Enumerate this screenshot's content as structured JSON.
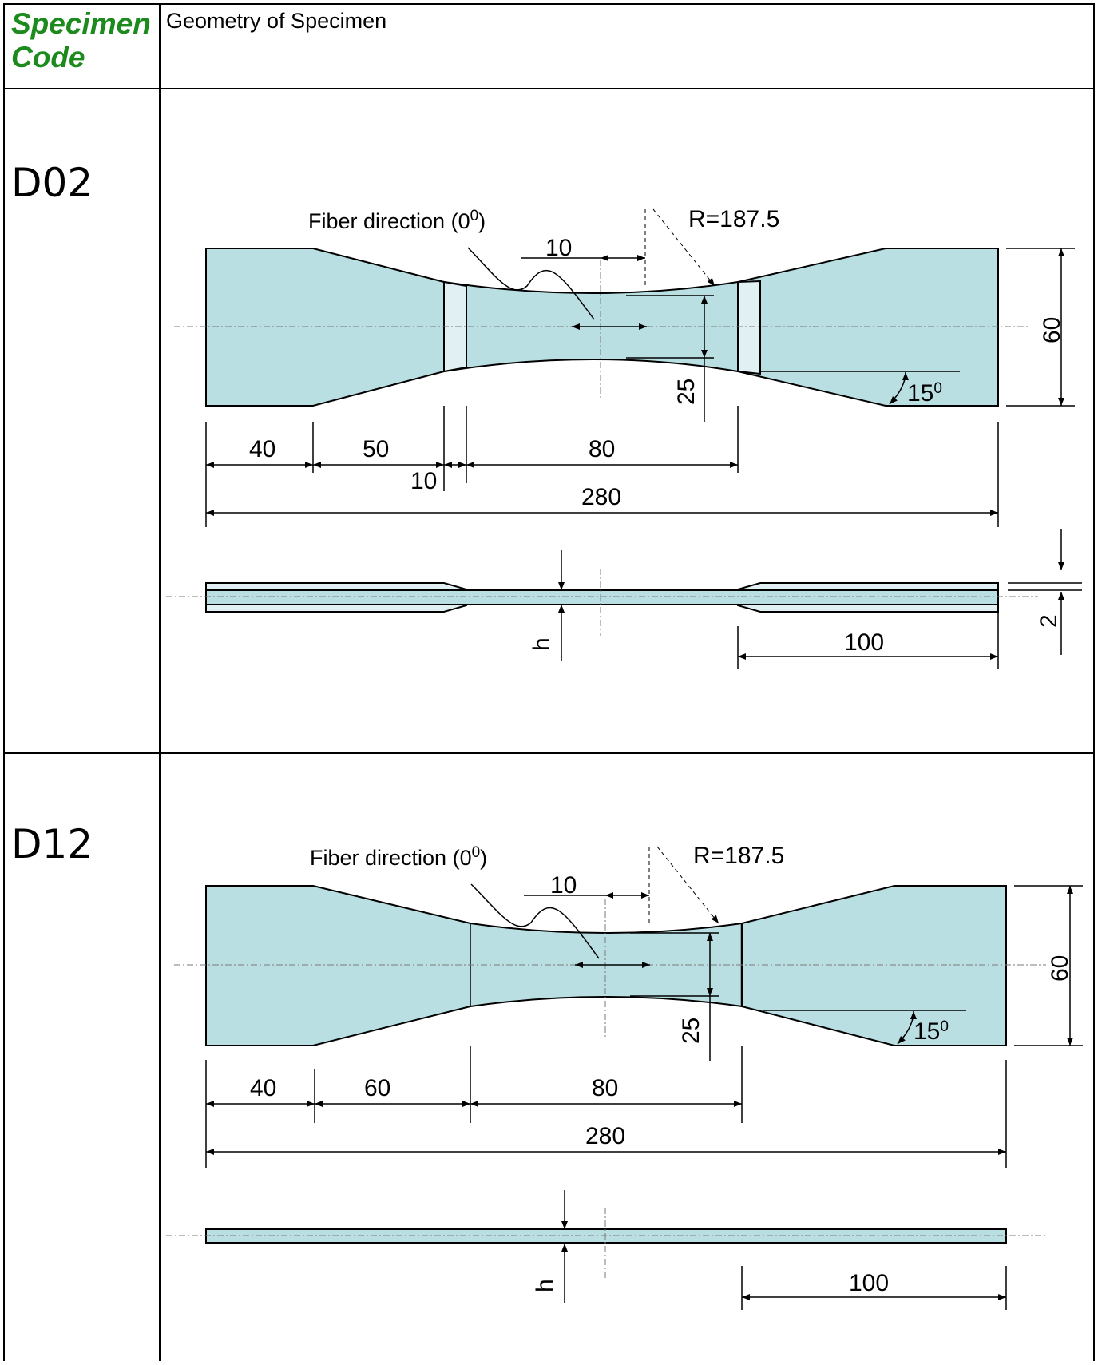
{
  "table": {
    "header": {
      "code_label": [
        "Specimen",
        "Code"
      ],
      "geometry_label": "Geometry of Specimen"
    },
    "rows": [
      {
        "code": "D02",
        "fiber_label": "Fiber direction (0",
        "fiber_sup": "0",
        "fiber_close": ")",
        "radius": "R=187.5",
        "dims": {
          "offset": "10",
          "width_total": "60",
          "width_gauge": "25",
          "angle": "15",
          "angle_sup": "0",
          "grip": "40",
          "taper": "50",
          "tab": "10",
          "gauge": "80",
          "total": "280",
          "thickness": "h",
          "tab_thickness": "2",
          "tab_length": "100"
        }
      },
      {
        "code": "D12",
        "fiber_label": "Fiber direction (0",
        "fiber_sup": "0",
        "fiber_close": ")",
        "radius": "R=187.5",
        "dims": {
          "offset": "10",
          "width_total": "60",
          "width_gauge": "25",
          "angle": "15",
          "angle_sup": "0",
          "grip": "40",
          "taper": "60",
          "gauge": "80",
          "total": "280",
          "thickness": "h",
          "tab_length": "100"
        }
      }
    ]
  },
  "colors": {
    "specimen_fill": "#b9dfe3",
    "tab_fill": "#e1f1f3",
    "header_code": "#1c8a1c"
  }
}
